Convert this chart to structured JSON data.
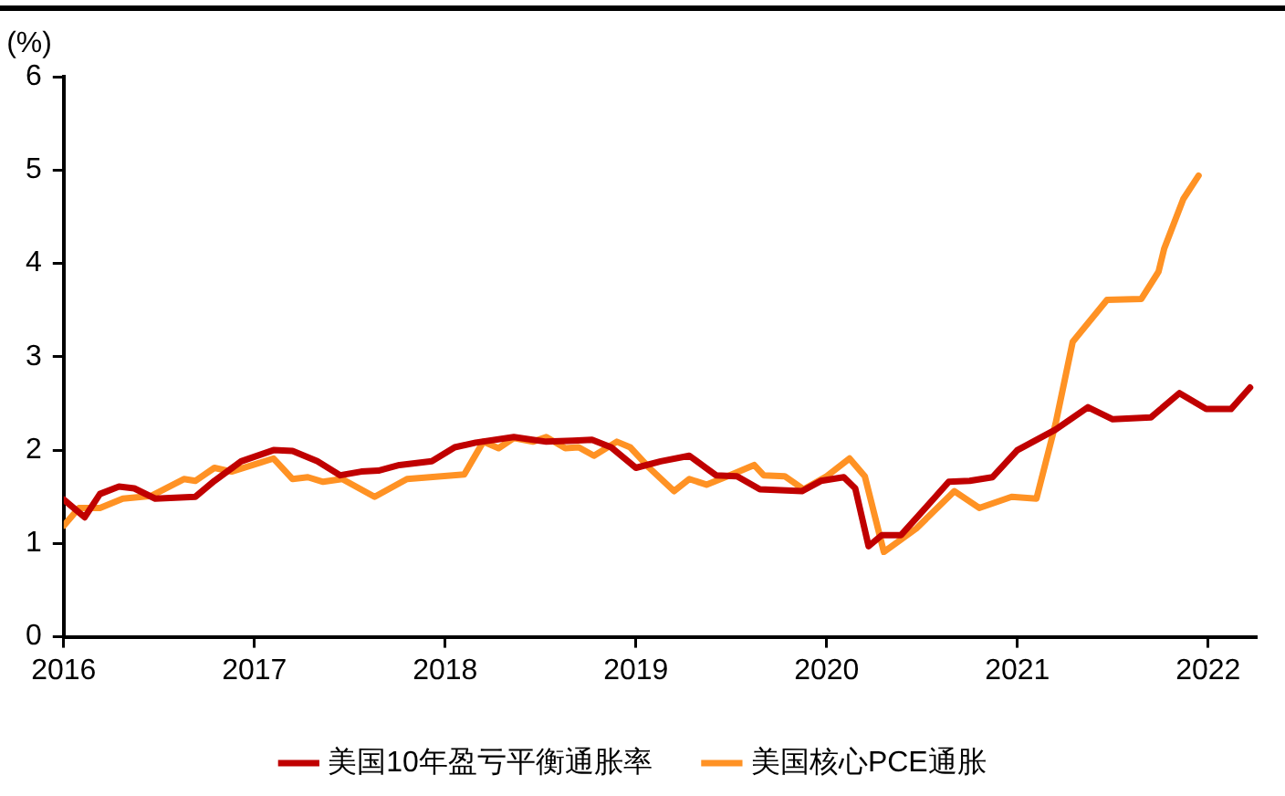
{
  "chart_data": {
    "type": "line",
    "ylabel": "(%)",
    "xlim": [
      2016,
      2022.25
    ],
    "xticks": [
      2016,
      2017,
      2018,
      2019,
      2020,
      2021,
      2022
    ],
    "ylim": [
      0,
      6
    ],
    "yticks": [
      0,
      1,
      2,
      3,
      4,
      5,
      6
    ],
    "grid": false,
    "legend": "bottom",
    "marker": "none",
    "line_style": "solid",
    "series": [
      {
        "name": "美国10年盈亏平衡通胀率",
        "color": "#c00000",
        "x": [
          2016.0,
          2016.11,
          2016.19,
          2016.29,
          2016.37,
          2016.48,
          2016.69,
          2016.79,
          2016.93,
          2017.1,
          2017.2,
          2017.33,
          2017.45,
          2017.56,
          2017.65,
          2017.76,
          2017.93,
          2018.05,
          2018.16,
          2018.36,
          2018.53,
          2018.67,
          2018.77,
          2018.87,
          2019.0,
          2019.13,
          2019.28,
          2019.42,
          2019.53,
          2019.65,
          2019.87,
          2019.97,
          2020.09,
          2020.15,
          2020.22,
          2020.29,
          2020.39,
          2020.5,
          2020.64,
          2020.75,
          2020.87,
          2021.0,
          2021.2,
          2021.37,
          2021.5,
          2021.7,
          2021.85,
          2021.99,
          2022.12,
          2022.22
        ],
        "values": [
          1.47,
          1.28,
          1.53,
          1.61,
          1.59,
          1.48,
          1.5,
          1.67,
          1.88,
          2.0,
          1.99,
          1.88,
          1.73,
          1.77,
          1.78,
          1.84,
          1.88,
          2.03,
          2.08,
          2.14,
          2.09,
          2.1,
          2.11,
          2.03,
          1.81,
          1.88,
          1.94,
          1.73,
          1.72,
          1.58,
          1.56,
          1.67,
          1.71,
          1.59,
          0.97,
          1.09,
          1.09,
          1.34,
          1.66,
          1.67,
          1.71,
          2.0,
          2.22,
          2.46,
          2.33,
          2.35,
          2.61,
          2.44,
          2.44,
          2.67
        ]
      },
      {
        "name": "美国核心PCE通胀",
        "color": "#ff9224",
        "x": [
          2016.0,
          2016.08,
          2016.19,
          2016.31,
          2016.46,
          2016.63,
          2016.69,
          2016.79,
          2016.88,
          2017.1,
          2017.2,
          2017.28,
          2017.36,
          2017.46,
          2017.63,
          2017.8,
          2018.1,
          2018.2,
          2018.28,
          2018.36,
          2018.46,
          2018.53,
          2018.63,
          2018.7,
          2018.78,
          2018.9,
          2018.97,
          2019.07,
          2019.2,
          2019.28,
          2019.37,
          2019.48,
          2019.62,
          2019.67,
          2019.78,
          2019.88,
          2020.0,
          2020.12,
          2020.2,
          2020.3,
          2020.47,
          2020.67,
          2020.8,
          2020.97,
          2021.1,
          2021.2,
          2021.29,
          2021.47,
          2021.65,
          2021.74,
          2021.77,
          2021.87,
          2021.95
        ],
        "values": [
          1.19,
          1.38,
          1.38,
          1.48,
          1.51,
          1.69,
          1.67,
          1.81,
          1.77,
          1.91,
          1.69,
          1.71,
          1.66,
          1.69,
          1.5,
          1.69,
          1.74,
          2.09,
          2.02,
          2.13,
          2.09,
          2.14,
          2.02,
          2.03,
          1.94,
          2.09,
          2.03,
          1.81,
          1.56,
          1.69,
          1.63,
          1.72,
          1.84,
          1.73,
          1.72,
          1.58,
          1.72,
          1.91,
          1.72,
          0.91,
          1.16,
          1.56,
          1.38,
          1.5,
          1.48,
          2.28,
          3.16,
          3.61,
          3.62,
          3.91,
          4.16,
          4.69,
          4.94
        ]
      }
    ]
  }
}
